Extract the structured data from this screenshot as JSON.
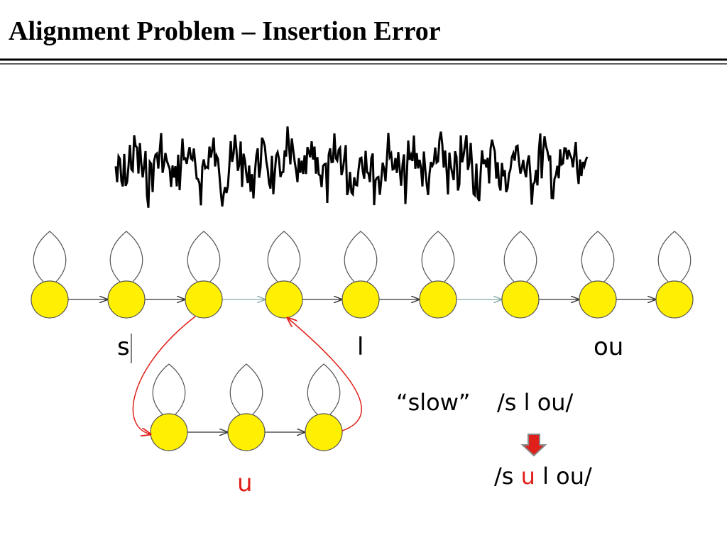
{
  "title": "Alignment Problem – Insertion Error",
  "labels": {
    "s": "s",
    "l": "l",
    "ou": "ou",
    "u": "u"
  },
  "word": "“slow”",
  "pronunciation": "/s l ou/",
  "result": {
    "before": "/s",
    "inserted": "u",
    "after": "l ou/"
  }
}
